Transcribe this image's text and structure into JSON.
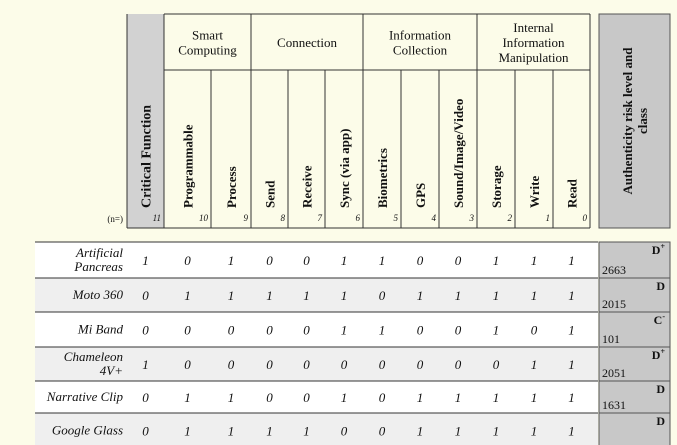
{
  "header": {
    "count_label": "(n=)",
    "critical_function": {
      "label": "Critical Function",
      "count": 11
    },
    "groups": [
      {
        "lines": [
          "Smart",
          "Computing"
        ],
        "columns": [
          {
            "label": "Programmable",
            "count": 10
          },
          {
            "label": "Process",
            "count": 9
          }
        ]
      },
      {
        "lines": [
          "Connection"
        ],
        "columns": [
          {
            "label": "Send",
            "count": 8
          },
          {
            "label": "Receive",
            "count": 7
          },
          {
            "label": "Sync (via app)",
            "count": 6
          }
        ]
      },
      {
        "lines": [
          "Information",
          "Collection"
        ],
        "columns": [
          {
            "label": "Biometrics",
            "count": 5
          },
          {
            "label": "GPS",
            "count": 4
          },
          {
            "label": "Sound/Image/Video",
            "count": 3
          }
        ]
      },
      {
        "lines": [
          "Internal",
          "Information",
          "Manipulation"
        ],
        "columns": [
          {
            "label": "Storage",
            "count": 2
          },
          {
            "label": "Write",
            "count": 1
          },
          {
            "label": "Read",
            "count": 0
          }
        ]
      }
    ],
    "risk_lines": [
      "Authenticity risk level and",
      "class"
    ]
  },
  "rows": [
    {
      "name": [
        "Artificial",
        "Pancreas"
      ],
      "critical": 1,
      "values": [
        0,
        1,
        0,
        0,
        1,
        1,
        0,
        0,
        1,
        1,
        1
      ],
      "risk": {
        "class": "D",
        "modifier": "+",
        "score": 2663
      }
    },
    {
      "name": [
        "Moto 360"
      ],
      "critical": 0,
      "values": [
        1,
        1,
        1,
        1,
        1,
        0,
        1,
        1,
        1,
        1,
        1
      ],
      "risk": {
        "class": "D",
        "score": 2015
      }
    },
    {
      "name": [
        "Mi Band"
      ],
      "critical": 0,
      "values": [
        0,
        0,
        0,
        0,
        1,
        1,
        0,
        0,
        1,
        0,
        1
      ],
      "risk": {
        "class": "C",
        "modifier": "-",
        "score": 101
      }
    },
    {
      "name": [
        "Chameleon",
        "4V+"
      ],
      "critical": 1,
      "values": [
        0,
        0,
        0,
        0,
        0,
        0,
        0,
        0,
        0,
        1,
        1
      ],
      "risk": {
        "class": "D",
        "modifier": "+",
        "score": 2051
      }
    },
    {
      "name": [
        "Narrative Clip"
      ],
      "critical": 0,
      "values": [
        1,
        1,
        0,
        0,
        1,
        0,
        1,
        1,
        1,
        1,
        1
      ],
      "risk": {
        "class": "D",
        "score": 1631
      }
    },
    {
      "name": [
        "Google Glass"
      ],
      "critical": 0,
      "values": [
        1,
        1,
        1,
        1,
        0,
        0,
        1,
        1,
        1,
        1,
        1
      ],
      "risk": {
        "class": "D"
      }
    }
  ]
}
